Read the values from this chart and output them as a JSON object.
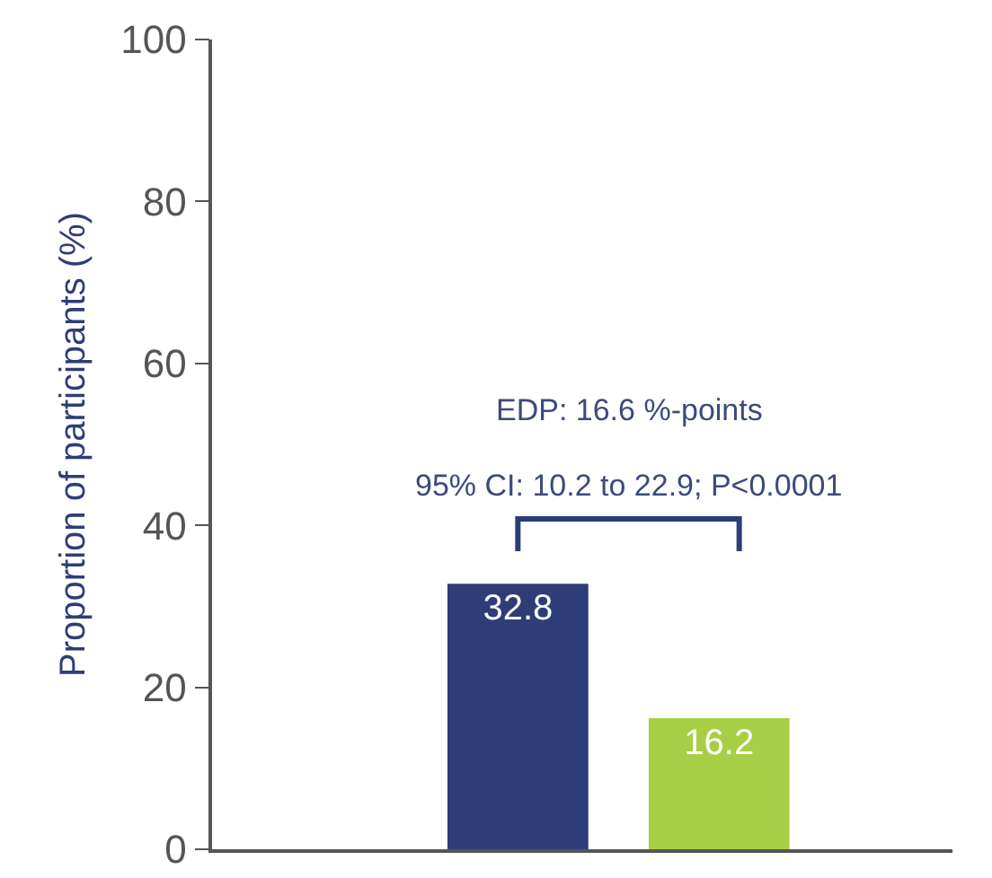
{
  "chart_data": {
    "type": "bar",
    "ylabel": "Proportion of participants (%)",
    "categories": [
      null,
      null
    ],
    "values": [
      32.8,
      16.2
    ],
    "colors": [
      "#2e3d78",
      "#a6cf45"
    ],
    "data_labels": true,
    "ylim": [
      0,
      100
    ],
    "yticks": [
      0,
      20,
      40,
      60,
      80,
      100
    ],
    "grid": false,
    "legend": false,
    "annotations": [
      "EDP: 16.6 %-points",
      "95% CI: 10.2 to 22.9; P<0.0001"
    ]
  }
}
